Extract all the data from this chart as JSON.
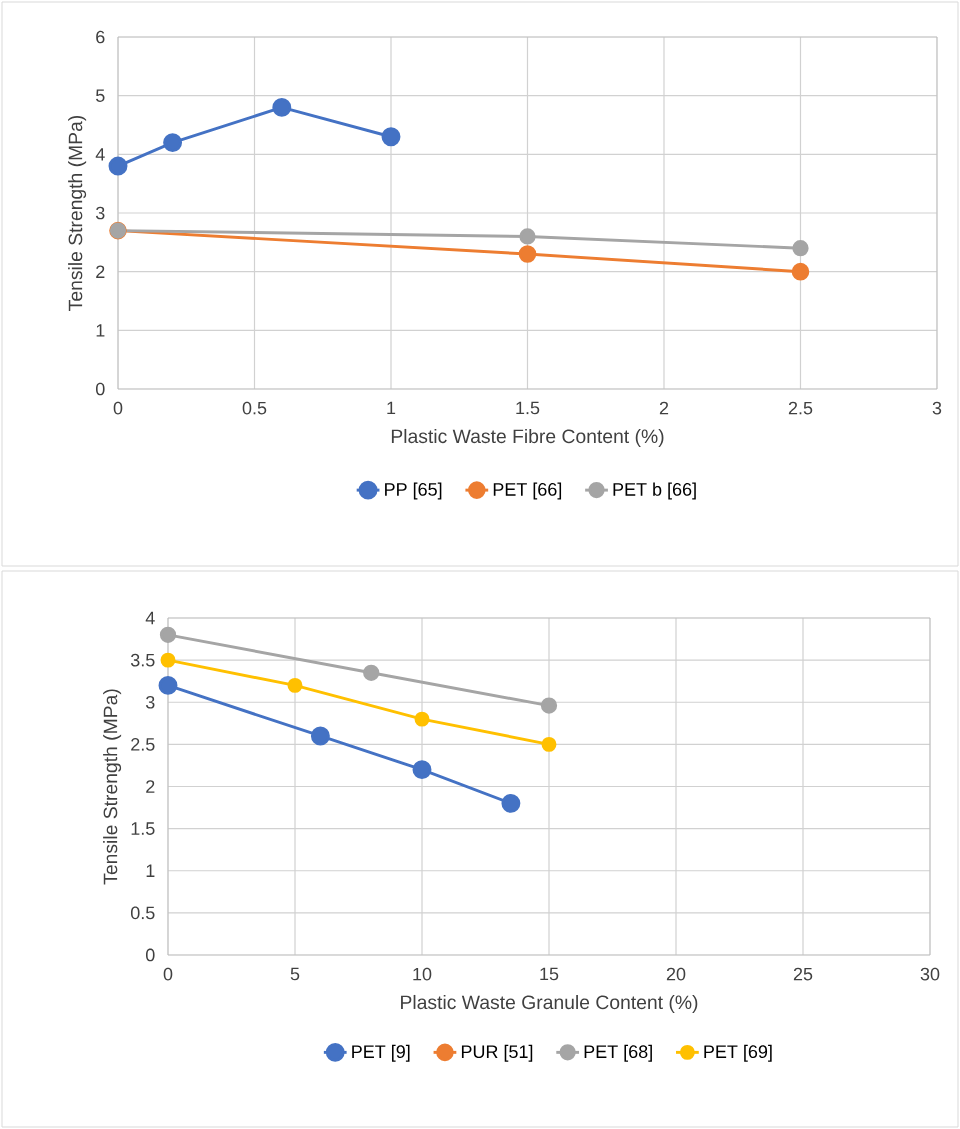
{
  "chart_data": [
    {
      "type": "line",
      "xlabel": "Plastic Waste Fibre Content (%)",
      "ylabel": "Tensile Strength (MPa)",
      "xlim": [
        0,
        3
      ],
      "ylim": [
        0,
        6
      ],
      "xticks": [
        0,
        0.5,
        1,
        1.5,
        2,
        2.5,
        3
      ],
      "yticks": [
        0,
        1,
        2,
        3,
        4,
        5,
        6
      ],
      "grid": true,
      "legend": "bottom",
      "marker": "circle",
      "series": [
        {
          "name": "PP [65]",
          "color": "#4472c4",
          "x": [
            0,
            0.2,
            0.6,
            1
          ],
          "values": [
            3.8,
            4.2,
            4.8,
            4.3
          ]
        },
        {
          "name": "PET [66]",
          "color": "#ed7d31",
          "x": [
            0,
            1.5,
            2.5
          ],
          "values": [
            2.7,
            2.3,
            2.0
          ]
        },
        {
          "name": "PET b [66]",
          "color": "#a5a5a5",
          "x": [
            0,
            1.5,
            2.5
          ],
          "values": [
            2.7,
            2.6,
            2.4
          ]
        }
      ]
    },
    {
      "type": "line",
      "xlabel": "Plastic Waste Granule Content (%)",
      "ylabel": "Tensile Strength (MPa)",
      "xlim": [
        0,
        30
      ],
      "ylim": [
        0,
        4
      ],
      "xticks": [
        0,
        5,
        10,
        15,
        20,
        25,
        30
      ],
      "yticks": [
        0,
        0.5,
        1,
        1.5,
        2,
        2.5,
        3,
        3.5,
        4
      ],
      "grid": true,
      "legend": "bottom",
      "marker": "circle",
      "series": [
        {
          "name": "PET [9]",
          "color": "#4472c4",
          "x": [
            0,
            6,
            10,
            13.5
          ],
          "values": [
            3.2,
            2.6,
            2.2,
            1.8
          ]
        },
        {
          "name": "PUR [51]",
          "color": "#ed7d31"
        },
        {
          "name": "PET [68]",
          "color": "#a5a5a5",
          "x": [
            0,
            8,
            15
          ],
          "values": [
            3.8,
            3.35,
            2.96
          ]
        },
        {
          "name": "PET [69]",
          "color": "#ffc000",
          "x": [
            0,
            5,
            10,
            15
          ],
          "values": [
            3.5,
            3.2,
            2.8,
            2.5
          ]
        }
      ]
    }
  ]
}
